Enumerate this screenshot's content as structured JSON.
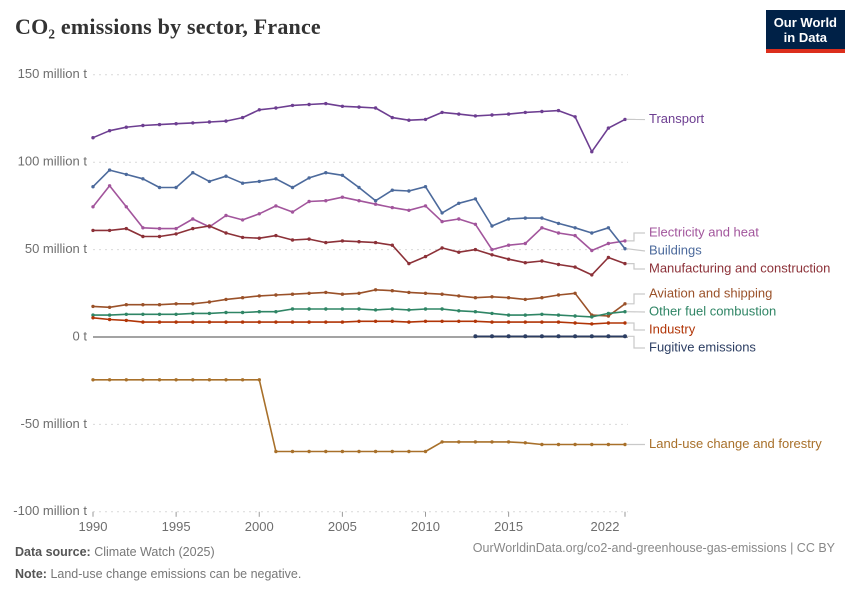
{
  "header": {
    "title": "CO₂ emissions by sector, France",
    "logo_line1": "Our World",
    "logo_line2": "in Data"
  },
  "footer": {
    "source_label": "Data source:",
    "source_value": "Climate Watch (2025)",
    "note_label": "Note:",
    "note_value": "Land-use change emissions can be negative.",
    "link": "OurWorldinData.org/co2-and-greenhouse-gas-emissions | CC BY"
  },
  "colors": {
    "logo_bg": "#002147",
    "logo_stripe": "#DC2E1C",
    "axis_text": "#6e6e6e",
    "gridline": "#d9d9d9",
    "zero_line": "#a3a3a3",
    "connector": "#c9c9c9"
  },
  "chart_data": {
    "type": "line",
    "title": "CO₂ emissions by sector, France",
    "xlabel": "",
    "ylabel": "",
    "unit": "million t",
    "ylim": [
      -100,
      150
    ],
    "grid": "dashed-horizontal",
    "legend_position": "right",
    "x": [
      1990,
      1991,
      1992,
      1993,
      1994,
      1995,
      1996,
      1997,
      1998,
      1999,
      2000,
      2001,
      2002,
      2003,
      2004,
      2005,
      2006,
      2007,
      2008,
      2009,
      2010,
      2011,
      2012,
      2013,
      2014,
      2015,
      2016,
      2017,
      2018,
      2019,
      2020,
      2021,
      2022
    ],
    "x_ticks": [
      {
        "year": 1990,
        "label": "1990"
      },
      {
        "year": 1995,
        "label": "1995"
      },
      {
        "year": 2000,
        "label": "2000"
      },
      {
        "year": 2005,
        "label": "2005"
      },
      {
        "year": 2010,
        "label": "2010"
      },
      {
        "year": 2015,
        "label": "2015"
      },
      {
        "year": 2022,
        "label": "2022"
      }
    ],
    "y_ticks": [
      {
        "value": 150,
        "label": "150 million t"
      },
      {
        "value": 100,
        "label": "100 million t"
      },
      {
        "value": 50,
        "label": "50 million t"
      },
      {
        "value": 0,
        "label": "0 t"
      },
      {
        "value": -50,
        "label": "-50 million t"
      },
      {
        "value": -100,
        "label": "-100 million t"
      }
    ],
    "series": [
      {
        "name": "Transport",
        "color": "#6D3E91",
        "values": [
          114,
          118,
          120,
          121,
          121.5,
          122,
          122.5,
          123,
          123.5,
          125.5,
          130,
          131,
          132.5,
          133,
          133.5,
          132,
          131.5,
          131,
          125.5,
          124,
          124.5,
          128.5,
          127.5,
          126.5,
          127,
          127.5,
          128.5,
          129,
          129.5,
          126,
          106,
          119.5,
          124.5
        ]
      },
      {
        "name": "Electricity and heat",
        "color": "#A2559C",
        "values": [
          74.5,
          86.5,
          74.5,
          62.5,
          62,
          62,
          67.5,
          63,
          69.5,
          67,
          70.5,
          75,
          71.5,
          77.5,
          78,
          80,
          78,
          76,
          74,
          72.5,
          75,
          66,
          67.5,
          64.5,
          50,
          52.5,
          53.5,
          62.5,
          59.5,
          58,
          49.5,
          53.5,
          55
        ]
      },
      {
        "name": "Buildings",
        "color": "#4C6A9C",
        "values": [
          86,
          95.5,
          93,
          90.5,
          85.5,
          85.5,
          94,
          89,
          92,
          88,
          89,
          90.5,
          85.5,
          91,
          94,
          92.5,
          85.5,
          78,
          84,
          83.5,
          86,
          71,
          76.5,
          79,
          63.5,
          67.5,
          68,
          68,
          65,
          62.5,
          59.5,
          62.5,
          50.5
        ]
      },
      {
        "name": "Manufacturing and construction",
        "color": "#8C3138",
        "values": [
          61,
          61,
          62,
          57.5,
          57.5,
          59,
          62,
          63.5,
          59.5,
          57,
          56.5,
          58,
          55.5,
          56,
          54,
          55,
          54.5,
          54,
          52.5,
          42,
          46,
          51,
          48.5,
          50,
          47,
          44.5,
          42.5,
          43.5,
          41.5,
          40,
          35.5,
          45.5,
          42
        ]
      },
      {
        "name": "Aviation and shipping",
        "color": "#9A5129",
        "values": [
          17.5,
          17,
          18.5,
          18.5,
          18.5,
          19,
          19,
          20,
          21.5,
          22.5,
          23.5,
          24,
          24.5,
          25,
          25.5,
          24.5,
          25,
          27,
          26.5,
          25.5,
          25,
          24.5,
          23.5,
          22.5,
          23,
          22.5,
          21.5,
          22.5,
          24,
          25,
          12.5,
          12,
          19
        ]
      },
      {
        "name": "Other fuel combustion",
        "color": "#2F8565",
        "values": [
          12.5,
          12.5,
          13,
          13,
          13,
          13,
          13.5,
          13.5,
          14,
          14,
          14.5,
          14.5,
          16,
          16,
          16,
          16,
          16,
          15.5,
          16,
          15.5,
          16,
          16,
          15,
          14.5,
          13.5,
          12.5,
          12.5,
          13,
          12.5,
          12,
          11.5,
          13.5,
          14.5
        ]
      },
      {
        "name": "Industry",
        "color": "#B13507",
        "values": [
          11,
          10,
          9.5,
          8.5,
          8.5,
          8.5,
          8.5,
          8.5,
          8.5,
          8.5,
          8.5,
          8.5,
          8.5,
          8.5,
          8.5,
          8.5,
          9,
          9,
          9,
          8.5,
          9,
          9,
          9,
          9,
          8.5,
          8.5,
          8.5,
          8.5,
          8.5,
          8,
          7.5,
          8,
          8
        ]
      },
      {
        "name": "Fugitive emissions",
        "color": "#2C3E63",
        "values": [
          null,
          null,
          null,
          null,
          null,
          null,
          null,
          null,
          null,
          null,
          null,
          null,
          null,
          null,
          null,
          null,
          null,
          null,
          null,
          null,
          null,
          null,
          null,
          0.4,
          0.4,
          0.4,
          0.4,
          0.4,
          0.4,
          0.4,
          0.4,
          0.4,
          0.4
        ]
      },
      {
        "name": "Land-use change and forestry",
        "color": "#A8702A",
        "values": [
          -24.5,
          -24.5,
          -24.5,
          -24.5,
          -24.5,
          -24.5,
          -24.5,
          -24.5,
          -24.5,
          -24.5,
          -24.5,
          -65.5,
          -65.5,
          -65.5,
          -65.5,
          -65.5,
          -65.5,
          -65.5,
          -65.5,
          -65.5,
          -65.5,
          -60,
          -60,
          -60,
          -60,
          -60,
          -60.5,
          -61.5,
          -61.5,
          -61.5,
          -61.5,
          -61.5,
          -61.5
        ]
      }
    ]
  }
}
